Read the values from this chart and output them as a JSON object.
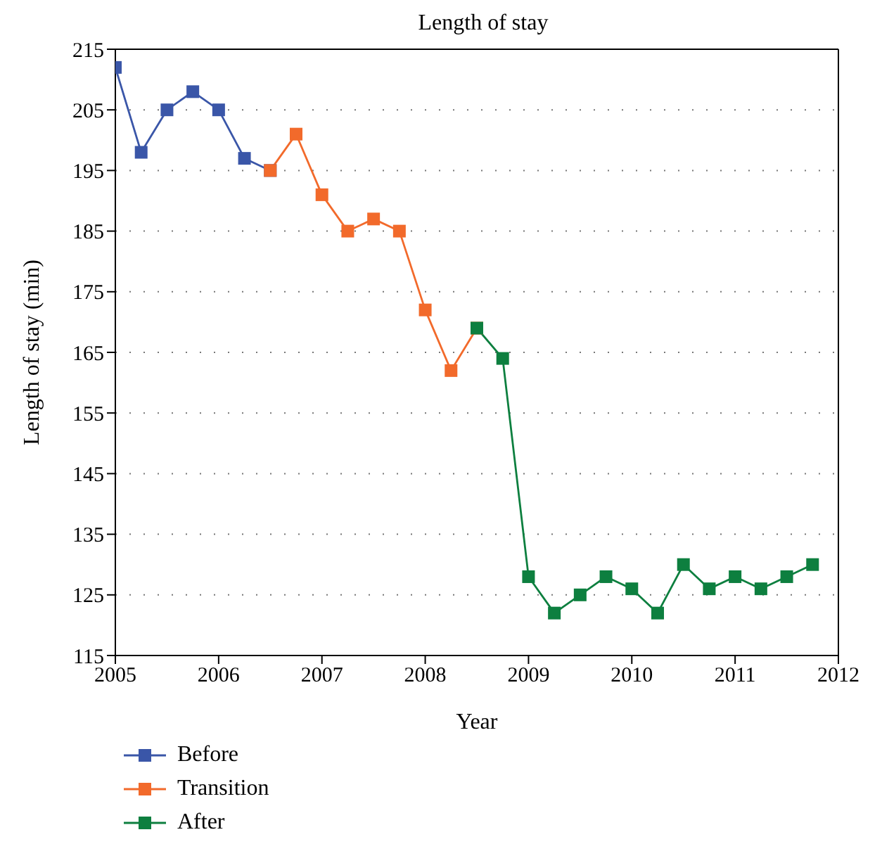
{
  "chart_data": {
    "type": "line",
    "title": "Length of stay",
    "xlabel": "Year",
    "ylabel": "Length of stay (min)",
    "xlim": [
      2005,
      2012
    ],
    "xticks": [
      2005,
      2006,
      2007,
      2008,
      2009,
      2010,
      2011,
      2012
    ],
    "ylim": [
      115,
      215
    ],
    "yticks": [
      115,
      125,
      135,
      145,
      155,
      165,
      175,
      185,
      195,
      205,
      215
    ],
    "grid": "y",
    "legend": "bottom left",
    "marker": "square",
    "line_style": "solid",
    "series": [
      {
        "name": "Before",
        "color": "#3a56a8",
        "x": [
          2005,
          2005.25,
          2005.5,
          2005.75,
          2006,
          2006.25,
          2006.5
        ],
        "values": [
          212,
          198,
          205,
          208,
          205,
          197,
          195
        ]
      },
      {
        "name": "Transition",
        "color": "#f26a2b",
        "x": [
          2006.5,
          2006.75,
          2007,
          2007.25,
          2007.5,
          2007.75,
          2008,
          2008.25,
          2008.5
        ],
        "values": [
          195,
          201,
          191,
          185,
          187,
          185,
          172,
          162,
          169
        ]
      },
      {
        "name": "After",
        "color": "#0d7f3f",
        "x": [
          2008.5,
          2008.75,
          2009,
          2009.25,
          2009.5,
          2009.75,
          2010,
          2010.25,
          2010.5,
          2010.75,
          2011,
          2011.25,
          2011.5,
          2011.75
        ],
        "values": [
          169,
          164,
          128,
          122,
          125,
          128,
          126,
          122,
          130,
          126,
          128,
          126,
          128,
          130
        ]
      }
    ]
  }
}
